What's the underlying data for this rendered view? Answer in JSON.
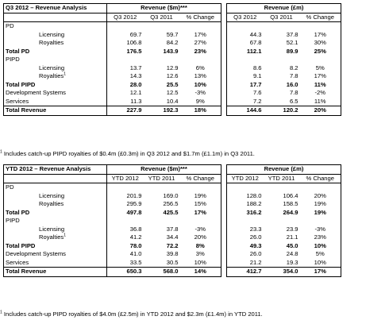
{
  "q3": {
    "title": "Q3 2012 – Revenue Analysis",
    "group_usd": "Revenue ($m)***",
    "group_gbp": "Revenue (£m)",
    "col_headers": [
      "Q3 2012",
      "Q3 2011",
      "% Change"
    ],
    "rows": [
      {
        "label": "PD",
        "usd": [
          "",
          "",
          ""
        ],
        "gbp": [
          "",
          "",
          ""
        ]
      },
      {
        "label": "Licensing",
        "usd": [
          "69.7",
          "59.7",
          "17%"
        ],
        "gbp": [
          "44.3",
          "37.8",
          "17%"
        ]
      },
      {
        "label": "Royalties",
        "usd": [
          "106.8",
          "84.2",
          "27%"
        ],
        "gbp": [
          "67.8",
          "52.1",
          "30%"
        ]
      },
      {
        "label": "Total PD",
        "usd": [
          "176.5",
          "143.9",
          "23%"
        ],
        "gbp": [
          "112.1",
          "89.9",
          "25%"
        ]
      },
      {
        "label": "PIPD",
        "usd": [
          "",
          "",
          ""
        ],
        "gbp": [
          "",
          "",
          ""
        ]
      },
      {
        "label": "Licensing",
        "usd": [
          "13.7",
          "12.9",
          "6%"
        ],
        "gbp": [
          "8.6",
          "8.2",
          "5%"
        ]
      },
      {
        "label": "Royalties",
        "sup": "1",
        "usd": [
          "14.3",
          "12.6",
          "13%"
        ],
        "gbp": [
          "9.1",
          "7.8",
          "17%"
        ]
      },
      {
        "label": "Total PIPD",
        "usd": [
          "28.0",
          "25.5",
          "10%"
        ],
        "gbp": [
          "17.7",
          "16.0",
          "11%"
        ]
      },
      {
        "label": "Development Systems",
        "usd": [
          "12.1",
          "12.5",
          "-3%"
        ],
        "gbp": [
          "7.6",
          "7.8",
          "-2%"
        ]
      },
      {
        "label": "Services",
        "usd": [
          "11.3",
          "10.4",
          "9%"
        ],
        "gbp": [
          "7.2",
          "6.5",
          "11%"
        ]
      },
      {
        "label": "Total Revenue",
        "usd": [
          "227.9",
          "192.3",
          "18%"
        ],
        "gbp": [
          "144.6",
          "120.2",
          "20%"
        ]
      }
    ],
    "footnote_sup": "1",
    "footnote": "Includes catch-up PIPD royalties of $0.4m (£0.3m) in Q3 2012 and $1.7m (£1.1m) in Q3 2011."
  },
  "ytd": {
    "title": "YTD 2012 – Revenue Analysis",
    "group_usd": "Revenue ($m)***",
    "group_gbp": "Revenue (£m)",
    "col_headers": [
      "YTD 2012",
      "YTD 2011",
      "% Change"
    ],
    "rows": [
      {
        "label": "PD",
        "usd": [
          "",
          "",
          ""
        ],
        "gbp": [
          "",
          "",
          ""
        ]
      },
      {
        "label": "Licensing",
        "usd": [
          "201.9",
          "169.0",
          "19%"
        ],
        "gbp": [
          "128.0",
          "106.4",
          "20%"
        ]
      },
      {
        "label": "Royalties",
        "usd": [
          "295.9",
          "256.5",
          "15%"
        ],
        "gbp": [
          "188.2",
          "158.5",
          "19%"
        ]
      },
      {
        "label": "Total PD",
        "usd": [
          "497.8",
          "425.5",
          "17%"
        ],
        "gbp": [
          "316.2",
          "264.9",
          "19%"
        ]
      },
      {
        "label": "PIPD",
        "usd": [
          "",
          "",
          ""
        ],
        "gbp": [
          "",
          "",
          ""
        ]
      },
      {
        "label": "Licensing",
        "usd": [
          "36.8",
          "37.8",
          "-3%"
        ],
        "gbp": [
          "23.3",
          "23.9",
          "-3%"
        ]
      },
      {
        "label": "Royalties",
        "sup": "1",
        "usd": [
          "41.2",
          "34.4",
          "20%"
        ],
        "gbp": [
          "26.0",
          "21.1",
          "23%"
        ]
      },
      {
        "label": "Total PIPD",
        "usd": [
          "78.0",
          "72.2",
          "8%"
        ],
        "gbp": [
          "49.3",
          "45.0",
          "10%"
        ]
      },
      {
        "label": "Development Systems",
        "usd": [
          "41.0",
          "39.8",
          "3%"
        ],
        "gbp": [
          "26.0",
          "24.8",
          "5%"
        ]
      },
      {
        "label": "Services",
        "usd": [
          "33.5",
          "30.5",
          "10%"
        ],
        "gbp": [
          "21.2",
          "19.3",
          "10%"
        ]
      },
      {
        "label": "Total Revenue",
        "usd": [
          "650.3",
          "568.0",
          "14%"
        ],
        "gbp": [
          "412.7",
          "354.0",
          "17%"
        ]
      }
    ],
    "footnote_sup": "1",
    "footnote": "Includes catch-up PIPD royalties of $4.0m (£2.5m) in YTD 2012 and $2.3m (£1.4m) in YTD 2011."
  }
}
